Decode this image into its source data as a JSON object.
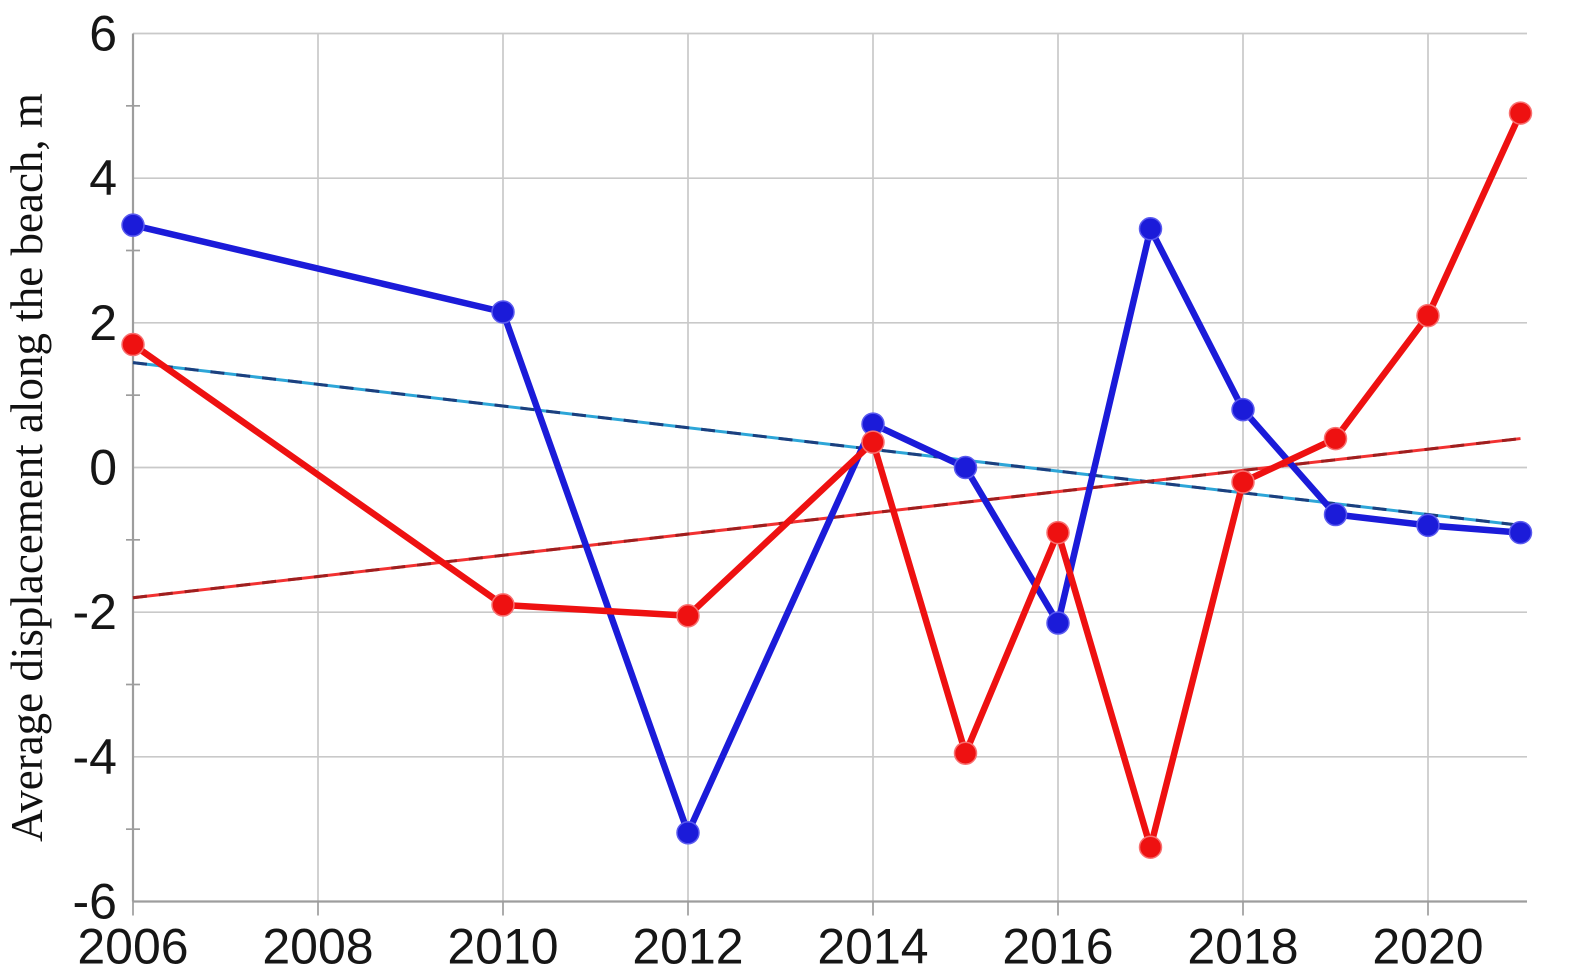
{
  "chart_data": {
    "type": "line",
    "title": "",
    "xlabel": "",
    "ylabel": "Average displacement along the beach, m",
    "ylim": [
      -6,
      6
    ],
    "xlim": [
      2006,
      2021.1
    ],
    "grid": true,
    "legend": false,
    "y_major_ticks": [
      6,
      4,
      2,
      0,
      -2,
      -4,
      -6
    ],
    "y_tick_labels": [
      "6",
      "4",
      "2",
      "0",
      "-2",
      "-4",
      "-6"
    ],
    "y_minor_ticks": [
      5,
      3,
      1,
      -1,
      -3,
      -5
    ],
    "x_major_ticks": [
      2006,
      2008,
      2010,
      2012,
      2014,
      2016,
      2018,
      2020
    ],
    "x_tick_labels": [
      "2006",
      "2008",
      "2010",
      "2012",
      "2014",
      "2016",
      "2018",
      "2020"
    ],
    "x_gridline_years": [
      2008,
      2010,
      2012,
      2014,
      2016,
      2018,
      2020
    ],
    "x": [
      2006,
      2010,
      2012,
      2014,
      2015,
      2016,
      2017,
      2018,
      2019,
      2020,
      2021
    ],
    "series": [
      {
        "name": "blue series",
        "color": "#1b1bd9",
        "marker_rim": "#5a5aef",
        "values": [
          3.35,
          2.15,
          -5.05,
          0.6,
          0.0,
          -2.15,
          3.3,
          0.8,
          -0.65,
          -0.8,
          -0.9
        ]
      },
      {
        "name": "red series",
        "color": "#ee1111",
        "marker_rim": "#f87070",
        "values": [
          1.7,
          -1.9,
          -2.05,
          0.35,
          -3.95,
          -0.9,
          -5.25,
          -0.2,
          0.4,
          2.1,
          4.9
        ]
      }
    ],
    "trendlines": [
      {
        "name": "blue linear trend",
        "x": [
          2006,
          2021
        ],
        "values": [
          1.45,
          -0.8
        ],
        "solid_color": "#2da6d8",
        "dash_color": "#1c3f7e"
      },
      {
        "name": "red linear trend",
        "x": [
          2006,
          2021
        ],
        "values": [
          -1.8,
          0.4
        ],
        "solid_color": "#f23131",
        "dash_color": "#9e1f1f"
      }
    ],
    "colors": {
      "grid": "#c9c9c9",
      "axis": "#9d9d9d",
      "tick_text": "#161616"
    }
  }
}
